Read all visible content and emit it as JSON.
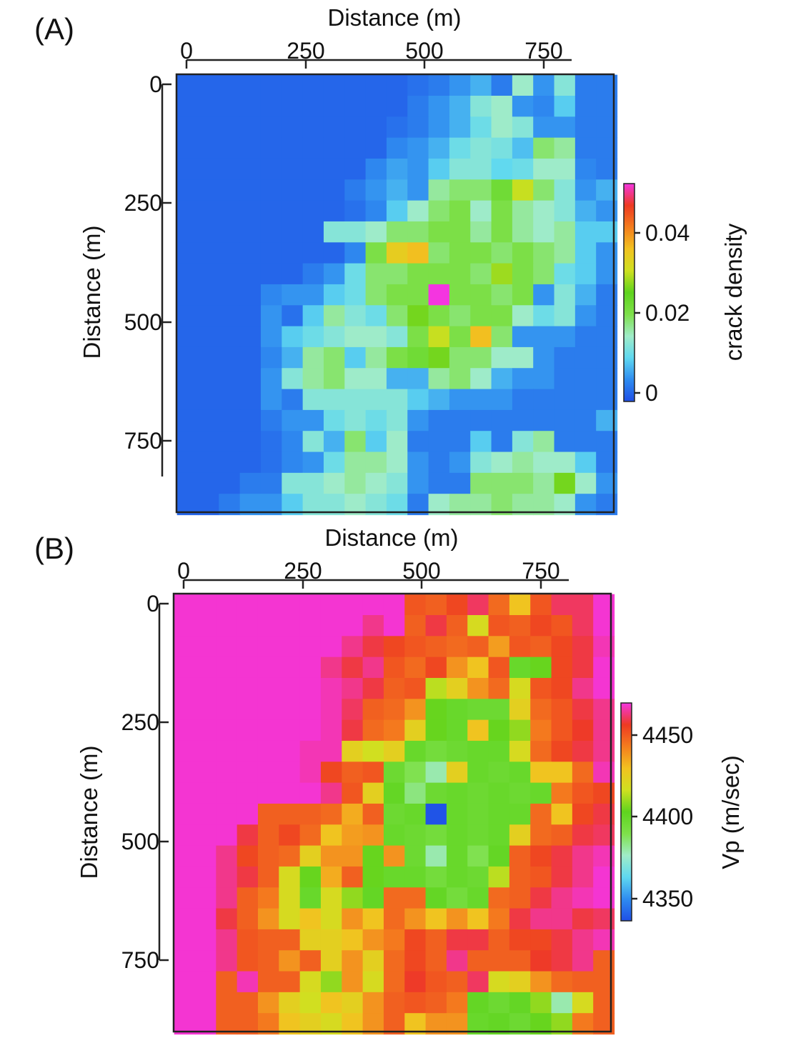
{
  "chart_data": [
    {
      "id": "A",
      "type": "heatmap",
      "panel_label": "(A)",
      "xlabel": "Distance (m)",
      "ylabel": "Distance (m)",
      "xlim": [
        -20,
        900
      ],
      "ylim": [
        -20,
        900
      ],
      "xticks": [
        0,
        250,
        500,
        750
      ],
      "yticks": [
        0,
        250,
        500,
        750
      ],
      "colorbar": {
        "label": "crack density",
        "ticks": [
          0,
          0.02,
          0.04
        ],
        "tick_labels": [
          "0",
          "0.02",
          "0.04"
        ],
        "range": [
          -0.002,
          0.052
        ],
        "colors": [
          "#1f4fe6",
          "#2f8cf0",
          "#5fd8f0",
          "#a0ecc8",
          "#7ee04a",
          "#5fd41e",
          "#cfe020",
          "#f2c220",
          "#f47d1e",
          "#ee3a22",
          "#f435e0"
        ]
      },
      "grid": {
        "x_start": -20,
        "y_start": -20,
        "cell": 44,
        "cols": 21,
        "rows": 21,
        "values": [
          [
            0,
            0,
            0,
            0,
            0,
            0,
            0,
            0,
            0,
            0,
            0,
            0.001,
            0.002,
            0.004,
            0.006,
            0.002,
            0.014,
            0.004,
            0.012,
            0.002,
            0.002
          ],
          [
            0,
            0,
            0,
            0,
            0,
            0,
            0,
            0,
            0,
            0,
            0,
            0.002,
            0.004,
            0.006,
            0.012,
            0.014,
            0.004,
            0.003,
            0.008,
            0.002,
            0.002
          ],
          [
            0,
            0,
            0,
            0,
            0,
            0,
            0,
            0,
            0,
            0,
            0.001,
            0.002,
            0.004,
            0.006,
            0.01,
            0.014,
            0.012,
            0.004,
            0.004,
            0.002,
            0.002
          ],
          [
            0,
            0,
            0,
            0,
            0,
            0,
            0,
            0,
            0,
            0,
            0.003,
            0.004,
            0.006,
            0.01,
            0.012,
            0.011,
            0.007,
            0.018,
            0.016,
            0.002,
            0.002
          ],
          [
            0,
            0,
            0,
            0,
            0,
            0,
            0,
            0,
            0,
            0.003,
            0.005,
            0.004,
            0.008,
            0.012,
            0.012,
            0.009,
            0.01,
            0.014,
            0.014,
            0.003,
            0.002
          ],
          [
            0,
            0,
            0,
            0,
            0,
            0,
            0,
            0,
            0.002,
            0.004,
            0.006,
            0.004,
            0.016,
            0.018,
            0.018,
            0.022,
            0.03,
            0.018,
            0.012,
            0.004,
            0.006
          ],
          [
            0,
            0,
            0,
            0,
            0,
            0,
            0,
            0,
            0.001,
            0.003,
            0.008,
            0.014,
            0.018,
            0.02,
            0.014,
            0.02,
            0.016,
            0.014,
            0.012,
            0.006,
            0.004
          ],
          [
            0,
            0,
            0,
            0,
            0,
            0,
            0,
            0.012,
            0.012,
            0.014,
            0.018,
            0.018,
            0.02,
            0.02,
            0.016,
            0.02,
            0.016,
            0.014,
            0.016,
            0.008,
            0.008
          ],
          [
            0,
            0,
            0,
            0,
            0,
            0,
            0,
            0,
            0.003,
            0.02,
            0.034,
            0.036,
            0.018,
            0.02,
            0.02,
            0.018,
            0.02,
            0.018,
            0.016,
            0.008,
            0.004
          ],
          [
            0,
            0,
            0,
            0,
            0,
            0,
            0.002,
            0.004,
            0.01,
            0.018,
            0.018,
            0.02,
            0.02,
            0.02,
            0.018,
            0.028,
            0.02,
            0.018,
            0.01,
            0.008,
            0.004
          ],
          [
            0,
            0,
            0,
            0,
            0.003,
            0.004,
            0.004,
            0.008,
            0.01,
            0.018,
            0.02,
            0.02,
            0.052,
            0.02,
            0.02,
            0.018,
            0.02,
            0.004,
            0.012,
            0.006,
            0.002
          ],
          [
            0,
            0,
            0,
            0,
            0.004,
            0.001,
            0.008,
            0.016,
            0.012,
            0.01,
            0.018,
            0.026,
            0.02,
            0.018,
            0.02,
            0.02,
            0.014,
            0.01,
            0.012,
            0.004,
            0.002
          ],
          [
            0,
            0,
            0,
            0,
            0.004,
            0.008,
            0.01,
            0.012,
            0.014,
            0.014,
            0.012,
            0.02,
            0.03,
            0.02,
            0.036,
            0.018,
            0.004,
            0.004,
            0.004,
            0.002,
            0.002
          ],
          [
            0,
            0,
            0,
            0,
            0.003,
            0.006,
            0.016,
            0.018,
            0.008,
            0.016,
            0.02,
            0.022,
            0.026,
            0.018,
            0.018,
            0.014,
            0.014,
            0.004,
            0.002,
            0.002,
            0.002
          ],
          [
            0,
            0,
            0,
            0,
            0.004,
            0.012,
            0.016,
            0.018,
            0.014,
            0.014,
            0.006,
            0.006,
            0.016,
            0.018,
            0.014,
            0.006,
            0.004,
            0.004,
            0.002,
            0.002,
            0.002
          ],
          [
            0,
            0,
            0,
            0,
            0.004,
            0.002,
            0.012,
            0.012,
            0.012,
            0.012,
            0.012,
            0.008,
            0.006,
            0.004,
            0.004,
            0.004,
            0.002,
            0.002,
            0.002,
            0.002,
            0.002
          ],
          [
            0,
            0,
            0,
            0,
            0.002,
            0.004,
            0.004,
            0.01,
            0.012,
            0.01,
            0.012,
            0.004,
            0.002,
            0.002,
            0.002,
            0.002,
            0.002,
            0.002,
            0.002,
            0.002,
            0.006
          ],
          [
            0,
            0,
            0,
            0,
            0.001,
            0.003,
            0.012,
            0.006,
            0.018,
            0.008,
            0.014,
            0.002,
            0.002,
            0.002,
            0.008,
            0.002,
            0.012,
            0.016,
            0.002,
            0.002,
            0.002
          ],
          [
            0,
            0,
            0,
            0,
            0.001,
            0.003,
            0.004,
            0.01,
            0.016,
            0.016,
            0.014,
            0.004,
            0.002,
            0.004,
            0.012,
            0.014,
            0.016,
            0.014,
            0.014,
            0.008,
            0.002
          ],
          [
            0,
            0,
            0,
            0.002,
            0.002,
            0.012,
            0.012,
            0.014,
            0.016,
            0.014,
            0.012,
            0.004,
            0.002,
            0.002,
            0.018,
            0.018,
            0.018,
            0.016,
            0.026,
            0.014,
            0.004
          ],
          [
            0,
            0,
            0.002,
            0.004,
            0.004,
            0.008,
            0.012,
            0.012,
            0.014,
            0.012,
            0.01,
            0.002,
            0.014,
            0.016,
            0.016,
            0.018,
            0.016,
            0.016,
            0.014,
            0.004,
            0.002
          ]
        ]
      }
    },
    {
      "id": "B",
      "type": "heatmap",
      "panel_label": "(B)",
      "xlabel": "Distance (m)",
      "ylabel": "Distance (m)",
      "xlim": [
        -20,
        900
      ],
      "ylim": [
        -20,
        900
      ],
      "xticks": [
        0,
        250,
        500,
        750
      ],
      "yticks": [
        0,
        250,
        500,
        750
      ],
      "colorbar": {
        "label": "Vp (m/sec)",
        "ticks": [
          4350,
          4400,
          4450
        ],
        "tick_labels": [
          "4350",
          "4400",
          "4450"
        ],
        "range": [
          4337,
          4471
        ],
        "colors": [
          "#1f4fe6",
          "#2f8cf0",
          "#5fd8f0",
          "#a0ecc8",
          "#7ee04a",
          "#5fd41e",
          "#cfe020",
          "#f2c220",
          "#f47d1e",
          "#ee3a22",
          "#f435e0"
        ]
      },
      "grid": {
        "x_start": -20,
        "y_start": -20,
        "cell": 44,
        "cols": 21,
        "rows": 21,
        "values": [
          [
            4470,
            4470,
            4470,
            4470,
            4470,
            4470,
            4470,
            4470,
            4470,
            4470,
            4470,
            4452,
            4450,
            4455,
            4462,
            4448,
            4430,
            4452,
            4462,
            4462,
            4470
          ],
          [
            4470,
            4470,
            4470,
            4470,
            4470,
            4470,
            4470,
            4470,
            4470,
            4465,
            4470,
            4450,
            4460,
            4450,
            4420,
            4452,
            4450,
            4455,
            4452,
            4462,
            4470
          ],
          [
            4470,
            4470,
            4470,
            4470,
            4470,
            4470,
            4470,
            4470,
            4465,
            4460,
            4455,
            4452,
            4450,
            4448,
            4450,
            4438,
            4452,
            4450,
            4455,
            4460,
            4468
          ],
          [
            4470,
            4470,
            4470,
            4470,
            4470,
            4470,
            4470,
            4465,
            4460,
            4465,
            4452,
            4448,
            4455,
            4440,
            4430,
            4452,
            4400,
            4405,
            4455,
            4460,
            4470
          ],
          [
            4470,
            4470,
            4470,
            4470,
            4470,
            4470,
            4470,
            4468,
            4465,
            4460,
            4450,
            4452,
            4415,
            4425,
            4440,
            4448,
            4420,
            4452,
            4455,
            4465,
            4470
          ],
          [
            4470,
            4470,
            4470,
            4470,
            4470,
            4470,
            4470,
            4468,
            4462,
            4450,
            4448,
            4440,
            4405,
            4400,
            4398,
            4398,
            4425,
            4448,
            4452,
            4460,
            4465
          ],
          [
            4470,
            4470,
            4470,
            4470,
            4470,
            4470,
            4470,
            4468,
            4460,
            4448,
            4445,
            4425,
            4405,
            4400,
            4430,
            4405,
            4410,
            4445,
            4452,
            4458,
            4465
          ],
          [
            4470,
            4470,
            4470,
            4470,
            4470,
            4470,
            4468,
            4468,
            4425,
            4418,
            4425,
            4400,
            4395,
            4398,
            4400,
            4400,
            4420,
            4448,
            4455,
            4460,
            4465
          ],
          [
            4470,
            4470,
            4470,
            4470,
            4470,
            4470,
            4468,
            4455,
            4450,
            4452,
            4398,
            4390,
            4380,
            4425,
            4400,
            4398,
            4400,
            4430,
            4430,
            4448,
            4468
          ],
          [
            4470,
            4470,
            4470,
            4470,
            4470,
            4470,
            4470,
            4465,
            4452,
            4425,
            4402,
            4385,
            4398,
            4400,
            4398,
            4400,
            4398,
            4400,
            4445,
            4452,
            4455
          ],
          [
            4470,
            4470,
            4470,
            4470,
            4450,
            4450,
            4450,
            4448,
            4435,
            4450,
            4398,
            4400,
            4338,
            4400,
            4398,
            4400,
            4400,
            4448,
            4430,
            4455,
            4460
          ],
          [
            4470,
            4470,
            4470,
            4460,
            4450,
            4455,
            4448,
            4430,
            4438,
            4440,
            4400,
            4398,
            4395,
            4400,
            4398,
            4400,
            4425,
            4448,
            4450,
            4460,
            4462
          ],
          [
            4470,
            4470,
            4465,
            4455,
            4450,
            4448,
            4425,
            4440,
            4440,
            4405,
            4440,
            4398,
            4380,
            4400,
            4390,
            4402,
            4450,
            4455,
            4460,
            4465,
            4468
          ],
          [
            4470,
            4470,
            4465,
            4460,
            4450,
            4420,
            4405,
            4435,
            4450,
            4405,
            4400,
            4400,
            4395,
            4400,
            4398,
            4415,
            4450,
            4452,
            4460,
            4465,
            4470
          ],
          [
            4470,
            4470,
            4465,
            4450,
            4445,
            4420,
            4400,
            4420,
            4410,
            4402,
            4448,
            4448,
            4402,
            4395,
            4400,
            4448,
            4450,
            4460,
            4465,
            4468,
            4470
          ],
          [
            4470,
            4470,
            4460,
            4450,
            4440,
            4420,
            4430,
            4420,
            4440,
            4430,
            4448,
            4440,
            4430,
            4440,
            4430,
            4445,
            4460,
            4465,
            4465,
            4460,
            4462
          ],
          [
            4470,
            4470,
            4465,
            4452,
            4450,
            4450,
            4425,
            4425,
            4430,
            4440,
            4445,
            4455,
            4450,
            4460,
            4460,
            4450,
            4455,
            4455,
            4460,
            4465,
            4468
          ],
          [
            4470,
            4470,
            4465,
            4452,
            4450,
            4440,
            4450,
            4425,
            4440,
            4425,
            4448,
            4455,
            4450,
            4465,
            4450,
            4450,
            4450,
            4458,
            4460,
            4465,
            4450
          ],
          [
            4470,
            4470,
            4450,
            4468,
            4450,
            4450,
            4420,
            4410,
            4440,
            4420,
            4448,
            4458,
            4452,
            4450,
            4462,
            4420,
            4425,
            4440,
            4448,
            4450,
            4450
          ],
          [
            4470,
            4470,
            4450,
            4450,
            4440,
            4425,
            4418,
            4430,
            4425,
            4440,
            4450,
            4452,
            4450,
            4445,
            4402,
            4398,
            4402,
            4410,
            4380,
            4420,
            4450
          ],
          [
            4470,
            4470,
            4450,
            4450,
            4445,
            4430,
            4425,
            4420,
            4430,
            4440,
            4450,
            4430,
            4440,
            4440,
            4400,
            4402,
            4398,
            4405,
            4410,
            4445,
            4450
          ]
        ]
      }
    }
  ]
}
